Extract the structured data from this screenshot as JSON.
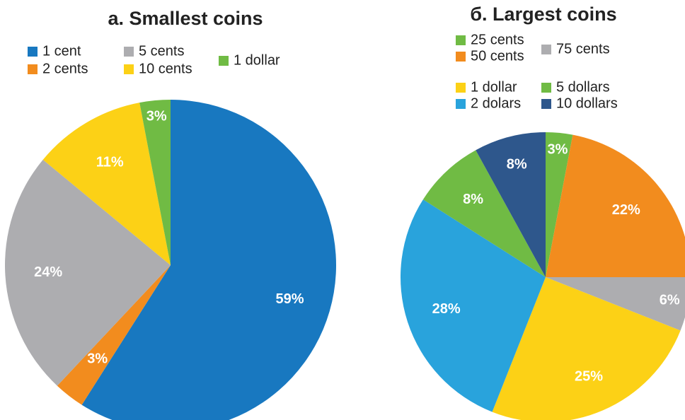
{
  "chart_data": [
    {
      "type": "pie",
      "title": "a. Smallest coins",
      "categories": [
        "1 cent",
        "2 cents",
        "5 cents",
        "10 cents",
        "1 dollar"
      ],
      "values": [
        59,
        3,
        24,
        11,
        3
      ],
      "value_labels": [
        "59%",
        "3%",
        "24%",
        "11%",
        "3%"
      ],
      "colors": [
        "#1878c0",
        "#f28c1e",
        "#adadb0",
        "#fcd116",
        "#70bb44"
      ]
    },
    {
      "type": "pie",
      "title": "б. Largest coins",
      "categories": [
        "25 cents",
        "50 cents",
        "75 cents",
        "1 dollar",
        "2 dolars",
        "5 dollars",
        "10 dollars"
      ],
      "values": [
        3,
        22,
        6,
        25,
        28,
        8,
        8
      ],
      "value_labels": [
        "3%",
        "22%",
        "6%",
        "25%",
        "28%",
        "8%",
        "8%"
      ],
      "colors": [
        "#70bb44",
        "#f28c1e",
        "#adadb0",
        "#fcd116",
        "#29a3dc",
        "#70bb44",
        "#2e578c"
      ]
    }
  ]
}
